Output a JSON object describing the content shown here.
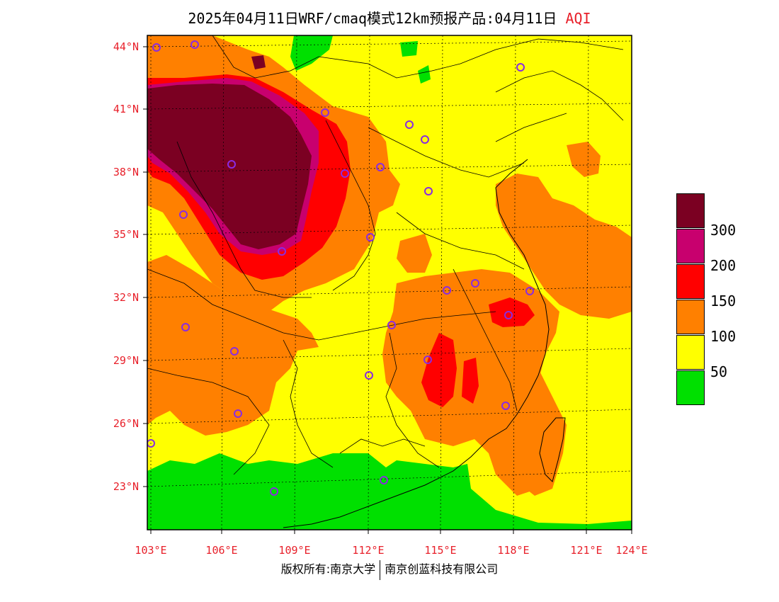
{
  "title": {
    "main": "2025年04月11日WRF/cmaq模式12km预报产品:04月11日",
    "variable": "AQI"
  },
  "axes": {
    "lon_labels": [
      "103°E",
      "106°E",
      "109°E",
      "112°E",
      "115°E",
      "118°E",
      "121°E",
      "124°E"
    ],
    "lat_labels": [
      "44°N",
      "41°N",
      "38°N",
      "35°N",
      "32°N",
      "29°N",
      "26°N",
      "23°N"
    ]
  },
  "legend": {
    "labels": [
      "300",
      "200",
      "150",
      "100",
      "50"
    ],
    "colors": [
      "#7b0022",
      "#c8006e",
      "#ff0000",
      "#ff8000",
      "#ffff00",
      "#00e000"
    ]
  },
  "colors": {
    "good": "#00e000",
    "moderate": "#ffff00",
    "usg": "#ff8000",
    "unhealthy": "#ff0000",
    "very_unhealthy": "#c8006e",
    "hazardous": "#7b0022",
    "tick_label": "#e8202a",
    "station_marker": "#8a2be2"
  },
  "footer": {
    "left": "版权所有:南京大学",
    "right": "南京创蓝科技有限公司"
  }
}
